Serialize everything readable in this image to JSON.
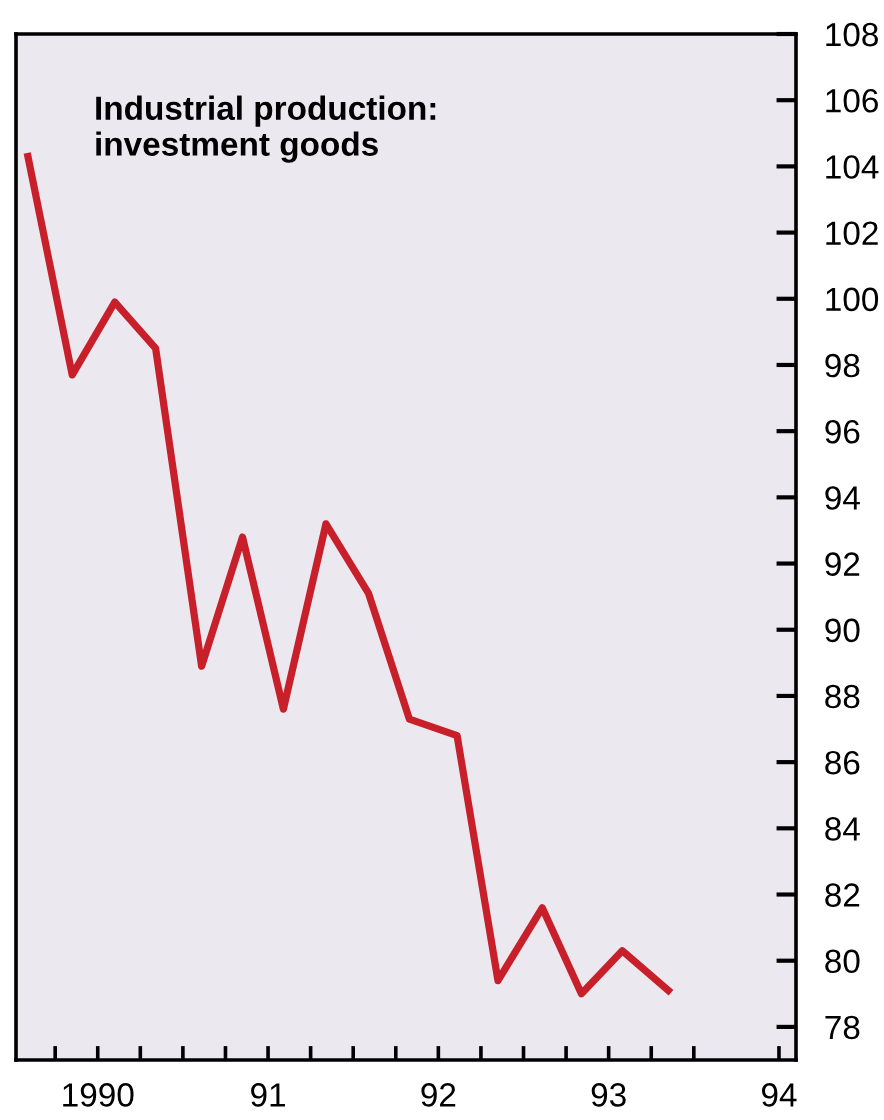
{
  "chart_data": {
    "type": "line",
    "title": "Industrial production:\ninvestment goods",
    "x": [
      1989.59,
      1989.85,
      1990.1,
      1990.34,
      1990.61,
      1990.85,
      1991.09,
      1991.34,
      1991.59,
      1991.83,
      1992.11,
      1992.35,
      1992.61,
      1992.84,
      1993.08,
      1993.35
    ],
    "series": [
      {
        "color": "#c8202a",
        "values": [
          104.3,
          97.7,
          99.9,
          98.5,
          88.9,
          92.8,
          87.6,
          93.2,
          91.1,
          87.3,
          86.8,
          79.4,
          81.6,
          79.0,
          80.3,
          79.1
        ]
      }
    ],
    "xlim": [
      1989.52,
      1994.1
    ],
    "xticks": [
      {
        "value": 1989.75,
        "label": null
      },
      {
        "value": 1990,
        "label": "1990"
      },
      {
        "value": 1990.25,
        "label": null
      },
      {
        "value": 1990.5,
        "label": null
      },
      {
        "value": 1990.75,
        "label": null
      },
      {
        "value": 1991,
        "label": "91"
      },
      {
        "value": 1991.25,
        "label": null
      },
      {
        "value": 1991.5,
        "label": null
      },
      {
        "value": 1991.75,
        "label": null
      },
      {
        "value": 1992,
        "label": "92"
      },
      {
        "value": 1992.25,
        "label": null
      },
      {
        "value": 1992.5,
        "label": null
      },
      {
        "value": 1992.75,
        "label": null
      },
      {
        "value": 1993,
        "label": "93"
      },
      {
        "value": 1993.25,
        "label": null
      },
      {
        "value": 1993.5,
        "label": null
      },
      {
        "value": 1994,
        "label": "94"
      }
    ],
    "ylim": [
      77,
      108
    ],
    "yticks": [
      78,
      80,
      82,
      84,
      86,
      88,
      90,
      92,
      94,
      96,
      98,
      100,
      102,
      104,
      106,
      108
    ],
    "grid": false,
    "legend": false,
    "marker": "none",
    "line_style": "solid"
  }
}
